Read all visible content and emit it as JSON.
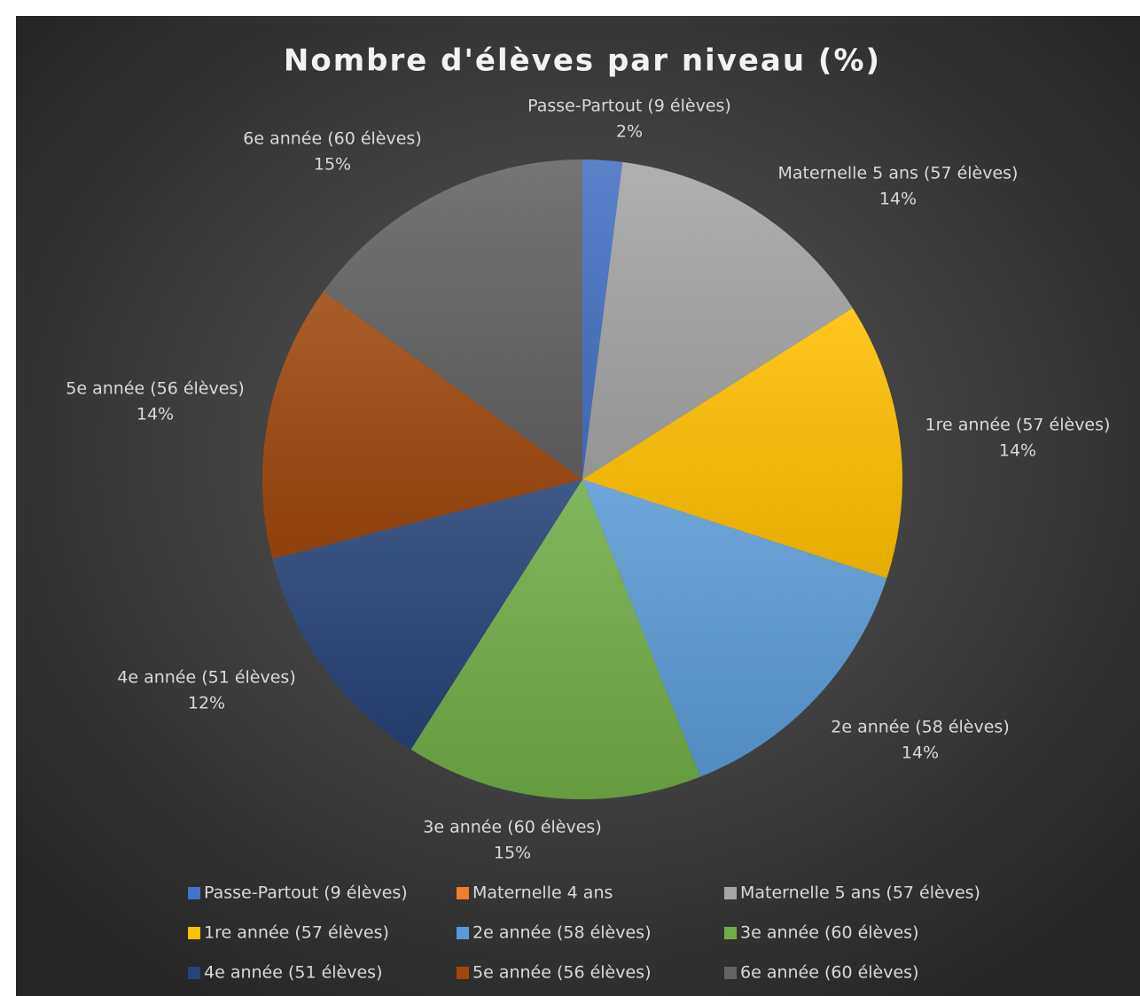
{
  "chart_data": {
    "type": "pie",
    "title": "Nombre d'élèves par niveau (%)",
    "categories": [
      "Passe-Partout (9 élèves)",
      "Maternelle 4 ans",
      "Maternelle 5 ans (57 élèves)",
      "1re année (57 élèves)",
      "2e année (58 élèves)",
      "3e année (60 élèves)",
      "4e année (51 élèves)",
      "5e année (56 élèves)",
      "6e année (60 élèves)"
    ],
    "values": [
      2,
      0,
      14,
      14,
      14,
      15,
      12,
      14,
      15
    ],
    "value_labels": [
      "2%",
      null,
      "14%",
      "14%",
      "14%",
      "15%",
      "12%",
      "14%",
      "15%"
    ],
    "colors": [
      "#4472c4",
      "#ed7d31",
      "#a5a5a5",
      "#ffc000",
      "#5b9bd5",
      "#70ad47",
      "#264478",
      "#9e480e",
      "#636363"
    ],
    "legend": "bottom"
  }
}
